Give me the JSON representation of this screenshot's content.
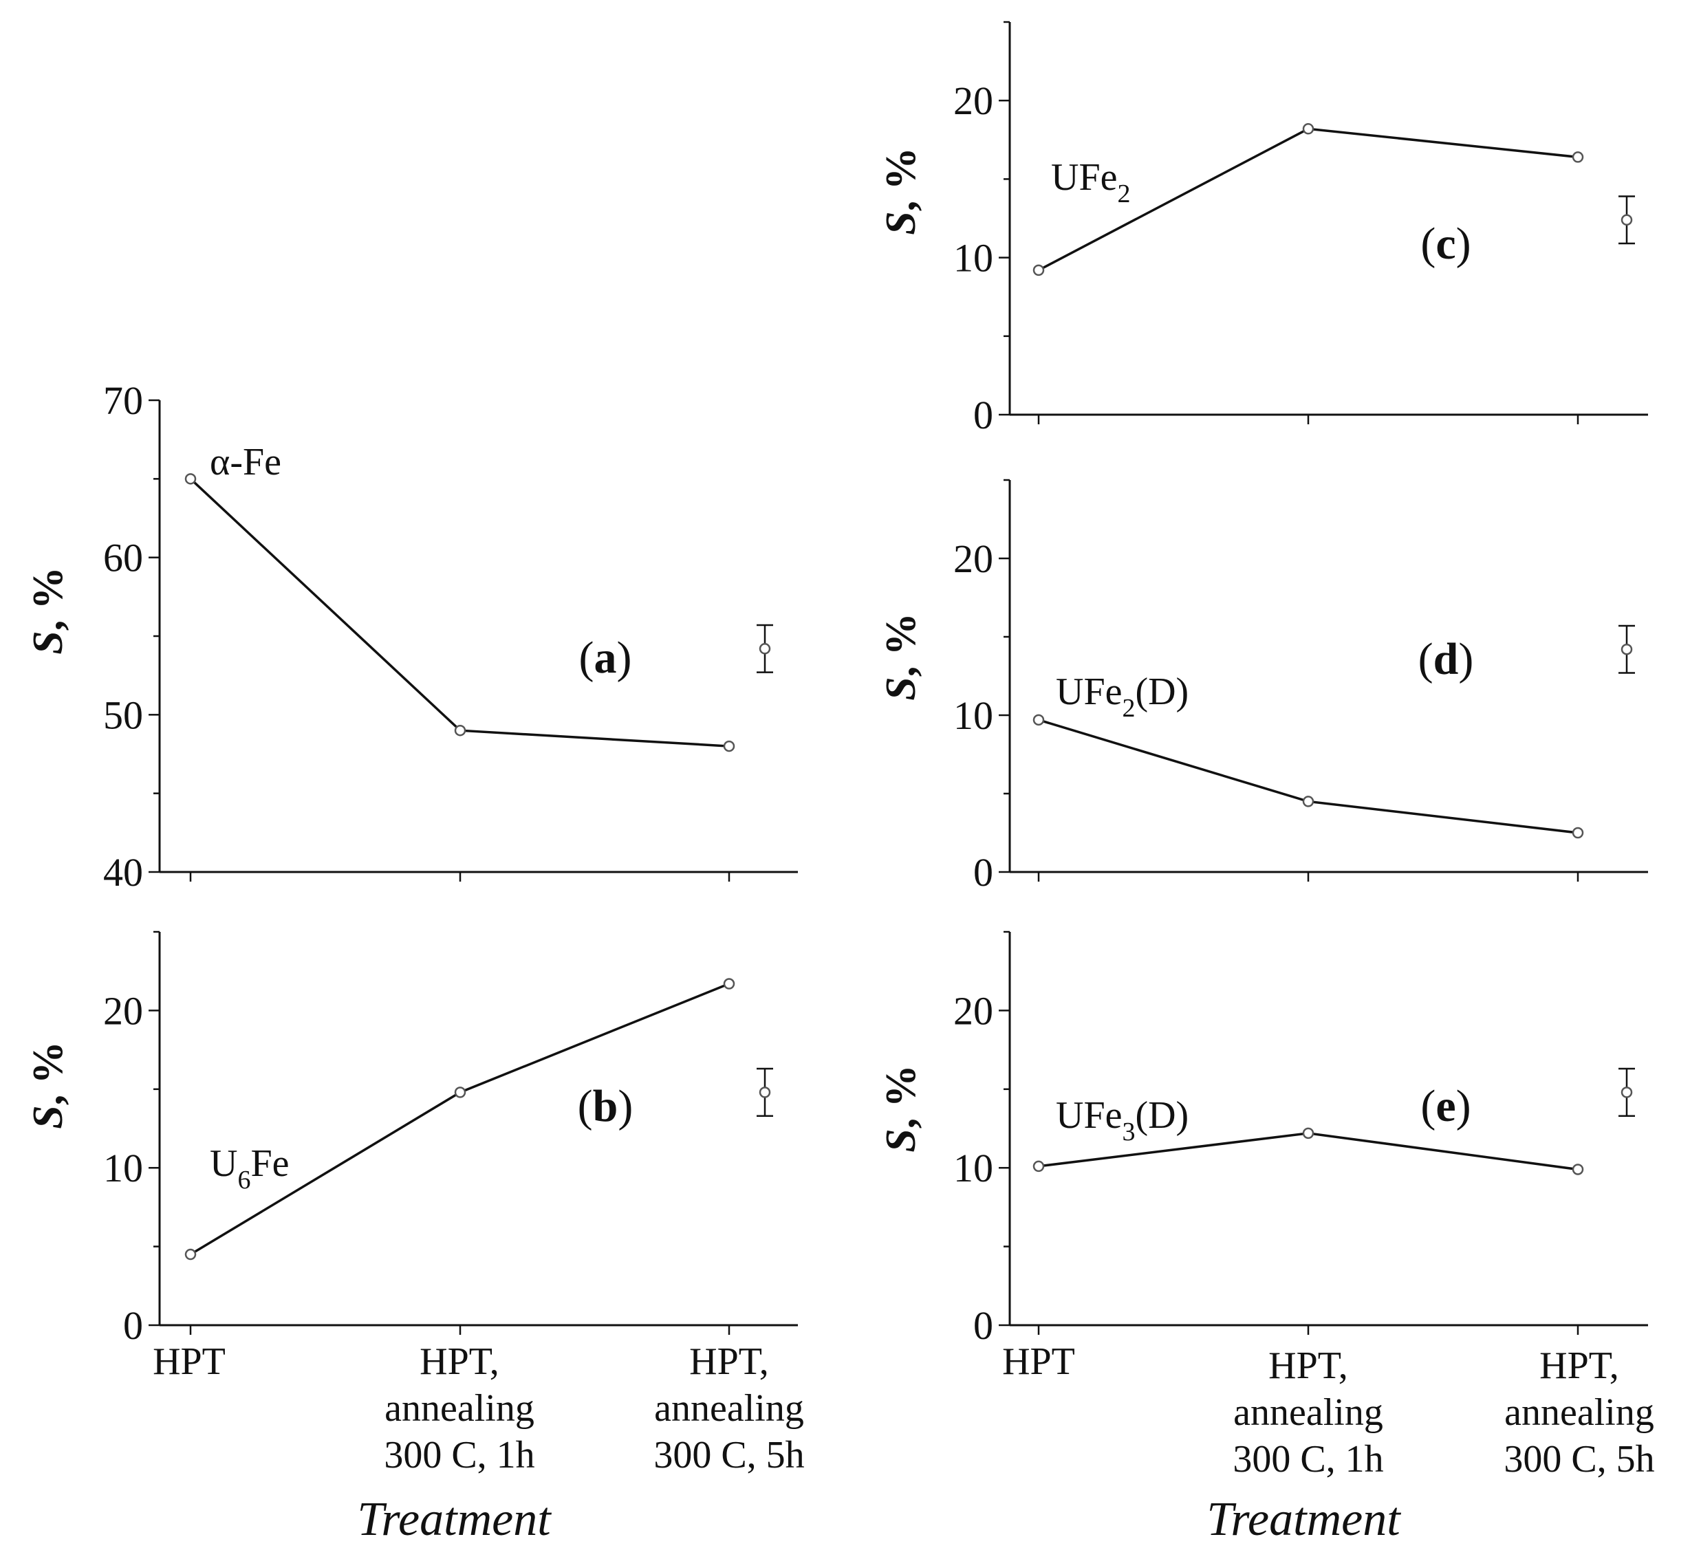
{
  "chart_data": [
    {
      "panel": "a",
      "type": "line",
      "categories": [
        "HPT",
        "HPT, annealing 300 C, 1h",
        "HPT, annealing 300 C, 5h"
      ],
      "series": [
        {
          "name": "α-Fe",
          "values": [
            65,
            49,
            48
          ]
        }
      ],
      "ylabel": "S, %",
      "ylim": [
        40,
        70
      ],
      "yticks": [
        40,
        50,
        60,
        70
      ],
      "panel_label": "a",
      "error_bar": {
        "center": 54.2,
        "half_width": 1.5
      }
    },
    {
      "panel": "b",
      "type": "line",
      "categories": [
        "HPT",
        "HPT, annealing 300 C, 1h",
        "HPT, annealing 300 C, 5h"
      ],
      "series": [
        {
          "name": "U6Fe",
          "values": [
            4.5,
            14.8,
            21.7
          ]
        }
      ],
      "ylabel": "S, %",
      "ylim": [
        0,
        25
      ],
      "yticks": [
        0,
        10,
        20
      ],
      "panel_label": "b",
      "error_bar": {
        "center": 14.8,
        "half_width": 1.5
      }
    },
    {
      "panel": "c",
      "type": "line",
      "categories": [
        "HPT",
        "HPT, annealing 300 C, 1h",
        "HPT, annealing 300 C, 5h"
      ],
      "series": [
        {
          "name": "UFe2",
          "values": [
            9.2,
            18.2,
            16.4
          ]
        }
      ],
      "ylabel": "S, %",
      "ylim": [
        0,
        25
      ],
      "yticks": [
        0,
        10,
        20
      ],
      "panel_label": "c",
      "error_bar": {
        "center": 12.4,
        "half_width": 1.5
      }
    },
    {
      "panel": "d",
      "type": "line",
      "categories": [
        "HPT",
        "HPT, annealing 300 C, 1h",
        "HPT, annealing 300 C, 5h"
      ],
      "series": [
        {
          "name": "UFe2(D)",
          "values": [
            9.7,
            4.5,
            2.5
          ]
        }
      ],
      "ylabel": "S, %",
      "ylim": [
        0,
        25
      ],
      "yticks": [
        0,
        10,
        20
      ],
      "panel_label": "d",
      "error_bar": {
        "center": 14.2,
        "half_width": 1.5
      }
    },
    {
      "panel": "e",
      "type": "line",
      "categories": [
        "HPT",
        "HPT, annealing 300 C, 1h",
        "HPT, annealing 300 C, 5h"
      ],
      "series": [
        {
          "name": "UFe3(D)",
          "values": [
            10.1,
            12.2,
            9.9
          ]
        }
      ],
      "ylabel": "S, %",
      "ylim": [
        0,
        25
      ],
      "yticks": [
        0,
        10,
        20
      ],
      "panel_label": "e",
      "error_bar": {
        "center": 14.8,
        "half_width": 1.5
      }
    }
  ],
  "labels": {
    "ylabel_symbol": "S",
    "ylabel_rest": ", %",
    "xtitle": "Treatment",
    "category_lines": [
      [
        "HPT"
      ],
      [
        "HPT,",
        "annealing",
        "300 C, 1h"
      ],
      [
        "HPT,",
        "annealing",
        "300 C, 5h"
      ]
    ],
    "series_text": {
      "a": {
        "main": "α-Fe",
        "sub": "",
        "tail": ""
      },
      "b": {
        "main": "U",
        "sub": "6",
        "tail": "Fe"
      },
      "c": {
        "main": "UFe",
        "sub": "2",
        "tail": ""
      },
      "d": {
        "main": "UFe",
        "sub": "2",
        "tail": "(D)"
      },
      "e": {
        "main": "UFe",
        "sub": "3",
        "tail": "(D)"
      }
    }
  }
}
